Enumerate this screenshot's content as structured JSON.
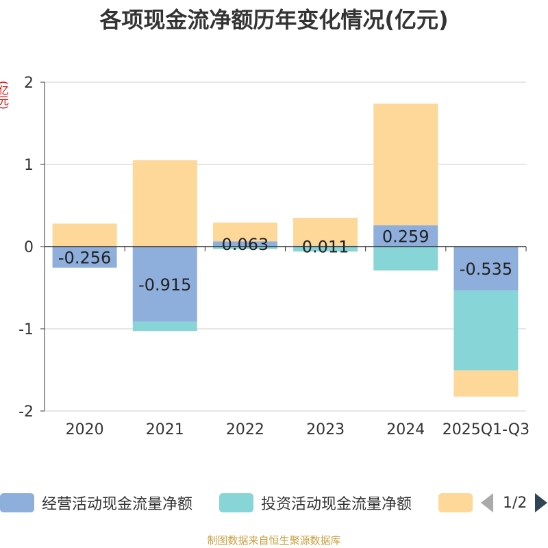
{
  "title": "各项现金流净额历年变化情况(亿元)",
  "ylabel": "(亿元)",
  "footer": "制图数据来自恒生聚源数据库",
  "legend": {
    "items": [
      {
        "label": "经营活动现金流量净额",
        "color": "#8eaedb"
      },
      {
        "label": "投资活动现金流量净额",
        "color": "#88d5d8"
      },
      {
        "label": "",
        "color": "#fdd899"
      }
    ],
    "page": "1/2"
  },
  "chart_data": {
    "type": "bar",
    "stacked": true,
    "title": "各项现金流净额历年变化情况(亿元)",
    "ylabel": "(亿元)",
    "categories": [
      "2020",
      "2021",
      "2022",
      "2023",
      "2024",
      "2025Q1-Q3"
    ],
    "ylim": [
      -2,
      2
    ],
    "yticks": [
      -2,
      -1,
      0,
      1,
      2
    ],
    "grid": true,
    "legend_position": "bottom",
    "series": [
      {
        "name": "经营活动现金流量净额",
        "color": "#8eaedb",
        "values": [
          -0.256,
          -0.915,
          0.063,
          0.011,
          0.259,
          -0.535
        ],
        "labels": [
          "-0.256",
          "-0.915",
          "0.063",
          "0.011",
          "0.259",
          "-0.535"
        ]
      },
      {
        "name": "投资活动现金流量净额",
        "color": "#88d5d8",
        "values": [
          0,
          -0.11,
          -0.03,
          -0.06,
          -0.29,
          -0.97
        ]
      },
      {
        "name": "",
        "color": "#fdd899",
        "values": [
          0.28,
          1.05,
          0.23,
          0.34,
          1.48,
          -0.32
        ]
      }
    ]
  }
}
